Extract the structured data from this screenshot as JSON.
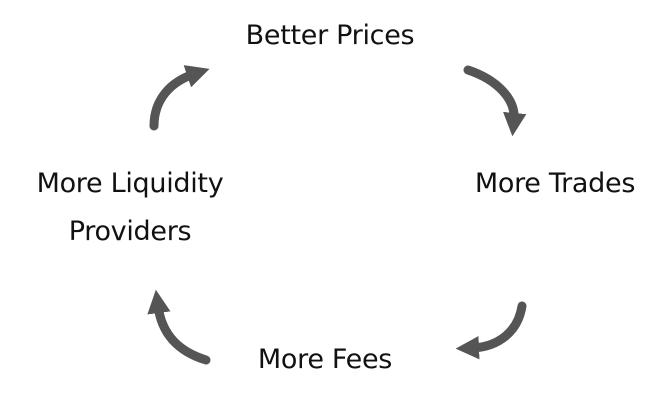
{
  "cycle": {
    "nodes": [
      {
        "label": "Better Prices"
      },
      {
        "label": "More Trades"
      },
      {
        "label": "More Fees"
      },
      {
        "label": "More Liquidity",
        "label_line2": "Providers"
      }
    ],
    "arrow_color": "#555555",
    "text_color": "#111111"
  }
}
